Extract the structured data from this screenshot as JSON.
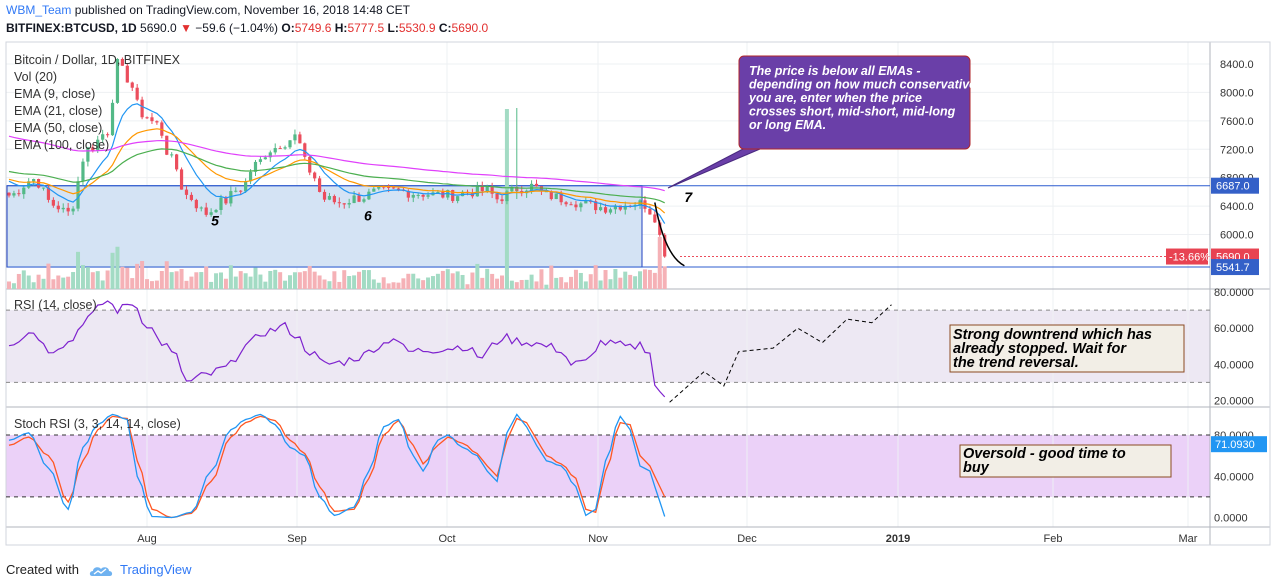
{
  "header": {
    "username": "WBM_Team",
    "published_text": "published on TradingView.com, November 16, 2018 14:48 CET",
    "symbol": "BITFINEX:BTCUSD, 1D",
    "last_price": "5690.0",
    "change": "−59.6 (−1.04%)",
    "open_label": "O:",
    "open": "5749.6",
    "high_label": "H:",
    "high": "5777.5",
    "low_label": "L:",
    "low": "5530.9",
    "close_label": "C:",
    "close": "5690.0"
  },
  "footer": {
    "created_with": "Created with",
    "brand": "TradingView"
  },
  "colors": {
    "up": "#53b987",
    "down": "#eb4d5c",
    "ema9": "#2196f3",
    "ema21": "#ff9800",
    "ema50": "#4caf50",
    "ema100": "#e040fb",
    "rsi": "#7e22ce",
    "stoch_k": "#2196f3",
    "stoch_d": "#ff5722",
    "box_fill": "#d4e3f4",
    "box_stroke": "#1f3fbf",
    "callout": "#6a3fa8"
  },
  "chart_data": [
    {
      "type": "candlestick",
      "panel": "price",
      "legend": [
        "Bitcoin / Dollar, 1D, BITFINEX",
        "Vol (20)",
        "EMA (9, close)",
        "EMA (21, close)",
        "EMA (50, close)",
        "EMA (100, close)"
      ],
      "y_ticks": [
        "8400.0",
        "8000.0",
        "7600.0",
        "7200.0",
        "6800.0",
        "6400.0",
        "6000.0"
      ],
      "ylim": [
        5480,
        8600
      ],
      "price_labels": {
        "resistance": "6687.0",
        "last": "5690.0",
        "support": "5541.7",
        "change_pct": "-13.66%"
      },
      "wave_labels": [
        "5",
        "6",
        "7"
      ],
      "callout": "The price is below all EMAs - depending on how much conservative you are, enter when the price crosses short, mid-short, mid-long or long EMA.",
      "x_labels": [
        "Aug",
        "Sep",
        "Oct",
        "Nov",
        "Dec",
        "2019",
        "Feb",
        "Mar"
      ],
      "anchors": [
        [
          0,
          6550
        ],
        [
          5,
          6780
        ],
        [
          9,
          6420
        ],
        [
          12,
          6300
        ],
        [
          16,
          7200
        ],
        [
          20,
          7450
        ],
        [
          22,
          8400
        ],
        [
          24,
          8200
        ],
        [
          27,
          7700
        ],
        [
          30,
          7550
        ],
        [
          33,
          7050
        ],
        [
          36,
          6550
        ],
        [
          40,
          6300
        ],
        [
          43,
          6450
        ],
        [
          47,
          6650
        ],
        [
          50,
          6980
        ],
        [
          53,
          7200
        ],
        [
          56,
          7300
        ],
        [
          58,
          7380
        ],
        [
          61,
          6900
        ],
        [
          64,
          6500
        ],
        [
          67,
          6450
        ],
        [
          71,
          6520
        ],
        [
          75,
          6600
        ],
        [
          79,
          6610
        ],
        [
          83,
          6580
        ],
        [
          87,
          6560
        ],
        [
          90,
          6550
        ],
        [
          93,
          6600
        ],
        [
          97,
          6620
        ],
        [
          99,
          6500
        ],
        [
          101,
          6560
        ],
        [
          103,
          6650
        ],
        [
          106,
          6680
        ],
        [
          109,
          6550
        ],
        [
          113,
          6500
        ],
        [
          117,
          6420
        ],
        [
          121,
          6380
        ],
        [
          124,
          6420
        ],
        [
          127,
          6450
        ],
        [
          129,
          6420
        ],
        [
          131,
          6250
        ],
        [
          133,
          5700
        ]
      ]
    },
    {
      "type": "line",
      "panel": "rsi",
      "legend": [
        "RSI (14, close)"
      ],
      "y_ticks": [
        "80.0000",
        "60.0000",
        "40.0000",
        "20.0000"
      ],
      "bands": [
        70,
        30
      ],
      "ylim": [
        16,
        80
      ],
      "anchors": [
        [
          0,
          52
        ],
        [
          5,
          58
        ],
        [
          8,
          48
        ],
        [
          12,
          52
        ],
        [
          16,
          66
        ],
        [
          20,
          75
        ],
        [
          22,
          70
        ],
        [
          25,
          74
        ],
        [
          28,
          62
        ],
        [
          31,
          52
        ],
        [
          34,
          44
        ],
        [
          36,
          30
        ],
        [
          40,
          34
        ],
        [
          44,
          38
        ],
        [
          48,
          50
        ],
        [
          52,
          58
        ],
        [
          56,
          61
        ],
        [
          58,
          56
        ],
        [
          61,
          47
        ],
        [
          64,
          40
        ],
        [
          67,
          41
        ],
        [
          71,
          44
        ],
        [
          75,
          50
        ],
        [
          78,
          55
        ],
        [
          81,
          47
        ],
        [
          85,
          48
        ],
        [
          89,
          49
        ],
        [
          92,
          50
        ],
        [
          96,
          44
        ],
        [
          98,
          50
        ],
        [
          100,
          55
        ],
        [
          103,
          53
        ],
        [
          106,
          52
        ],
        [
          109,
          50
        ],
        [
          112,
          48
        ],
        [
          114,
          40
        ],
        [
          117,
          41
        ],
        [
          120,
          52
        ],
        [
          123,
          51
        ],
        [
          126,
          49
        ],
        [
          128,
          51
        ],
        [
          130,
          47
        ],
        [
          131,
          28
        ],
        [
          133,
          22
        ]
      ],
      "projection": [
        [
          134,
          19
        ],
        [
          141,
          36
        ],
        [
          145,
          28
        ],
        [
          148,
          47
        ],
        [
          155,
          49
        ],
        [
          160,
          60
        ],
        [
          165,
          52
        ],
        [
          170,
          65
        ],
        [
          175,
          63
        ],
        [
          179,
          73
        ]
      ],
      "annotation": "Strong downtrend which has already stopped. Wait for the trend reversal."
    },
    {
      "type": "line",
      "panel": "stoch_rsi",
      "legend": [
        "Stoch RSI (3, 3, 14, 14, close)"
      ],
      "y_ticks": [
        "80.0000",
        "40.0000",
        "0.0000"
      ],
      "value_label": "71.0930",
      "bands": [
        80,
        20
      ],
      "ylim": [
        -2,
        100
      ],
      "k_anchors": [
        [
          0,
          75
        ],
        [
          4,
          82
        ],
        [
          8,
          48
        ],
        [
          12,
          8
        ],
        [
          15,
          68
        ],
        [
          18,
          90
        ],
        [
          21,
          100
        ],
        [
          24,
          95
        ],
        [
          26,
          40
        ],
        [
          29,
          1
        ],
        [
          33,
          0
        ],
        [
          37,
          5
        ],
        [
          41,
          45
        ],
        [
          45,
          85
        ],
        [
          48,
          95
        ],
        [
          51,
          100
        ],
        [
          54,
          90
        ],
        [
          57,
          68
        ],
        [
          60,
          60
        ],
        [
          63,
          20
        ],
        [
          66,
          2
        ],
        [
          70,
          10
        ],
        [
          73,
          45
        ],
        [
          76,
          88
        ],
        [
          79,
          95
        ],
        [
          82,
          60
        ],
        [
          84,
          45
        ],
        [
          87,
          75
        ],
        [
          89,
          80
        ],
        [
          92,
          68
        ],
        [
          95,
          60
        ],
        [
          97,
          45
        ],
        [
          99,
          35
        ],
        [
          101,
          82
        ],
        [
          103,
          100
        ],
        [
          105,
          88
        ],
        [
          107,
          70
        ],
        [
          109,
          55
        ],
        [
          112,
          50
        ],
        [
          115,
          30
        ],
        [
          117,
          2
        ],
        [
          119,
          8
        ],
        [
          121,
          55
        ],
        [
          124,
          98
        ],
        [
          126,
          85
        ],
        [
          128,
          50
        ],
        [
          130,
          45
        ],
        [
          131,
          30
        ],
        [
          133,
          1
        ]
      ],
      "d_anchors": [
        [
          0,
          70
        ],
        [
          4,
          78
        ],
        [
          8,
          60
        ],
        [
          12,
          15
        ],
        [
          15,
          55
        ],
        [
          18,
          85
        ],
        [
          21,
          98
        ],
        [
          24,
          96
        ],
        [
          26,
          55
        ],
        [
          29,
          8
        ],
        [
          33,
          0
        ],
        [
          37,
          4
        ],
        [
          41,
          35
        ],
        [
          45,
          78
        ],
        [
          48,
          92
        ],
        [
          51,
          98
        ],
        [
          54,
          94
        ],
        [
          57,
          75
        ],
        [
          60,
          62
        ],
        [
          63,
          30
        ],
        [
          66,
          6
        ],
        [
          70,
          8
        ],
        [
          73,
          38
        ],
        [
          76,
          80
        ],
        [
          79,
          94
        ],
        [
          82,
          70
        ],
        [
          84,
          52
        ],
        [
          87,
          70
        ],
        [
          89,
          78
        ],
        [
          92,
          72
        ],
        [
          95,
          62
        ],
        [
          97,
          50
        ],
        [
          99,
          40
        ],
        [
          101,
          75
        ],
        [
          103,
          96
        ],
        [
          105,
          92
        ],
        [
          107,
          76
        ],
        [
          109,
          60
        ],
        [
          112,
          52
        ],
        [
          115,
          38
        ],
        [
          117,
          8
        ],
        [
          119,
          5
        ],
        [
          121,
          45
        ],
        [
          124,
          92
        ],
        [
          126,
          90
        ],
        [
          128,
          60
        ],
        [
          130,
          50
        ],
        [
          131,
          40
        ],
        [
          133,
          20
        ]
      ],
      "annotation": "Oversold - good time to buy"
    }
  ]
}
